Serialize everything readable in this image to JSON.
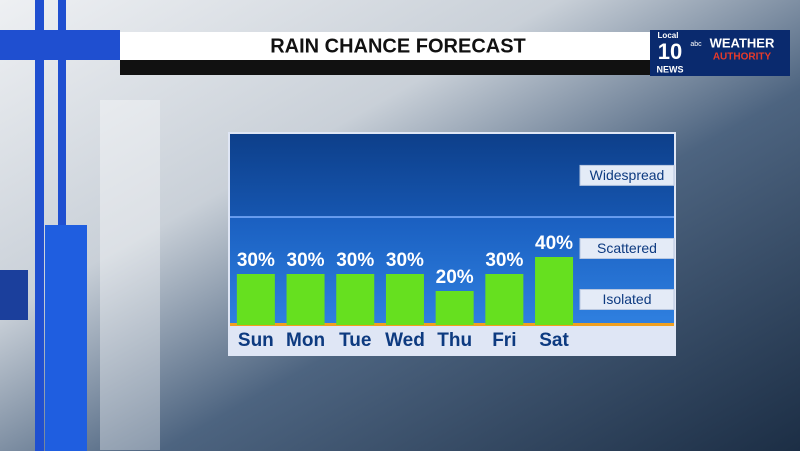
{
  "chart_data": {
    "type": "bar",
    "title": "RAIN CHANCE FORECAST",
    "categories": [
      "Sun",
      "Mon",
      "Tue",
      "Wed",
      "Thu",
      "Fri",
      "Sat"
    ],
    "values": [
      30,
      30,
      30,
      30,
      20,
      30,
      40
    ],
    "value_labels": [
      "30%",
      "30%",
      "30%",
      "30%",
      "20%",
      "30%",
      "40%"
    ],
    "color": "#66e01f",
    "ylim": [
      0,
      100
    ],
    "yticks": [
      {
        "value": 15,
        "label": "Isolated"
      },
      {
        "value": 45,
        "label": "Scattered"
      },
      {
        "value": 88,
        "label": "Widespread"
      }
    ]
  },
  "branding": {
    "local": "Local",
    "number": "10",
    "news": "NEWS",
    "network": "abc",
    "weather": "WEATHER",
    "authority": "AUTHORITY"
  }
}
